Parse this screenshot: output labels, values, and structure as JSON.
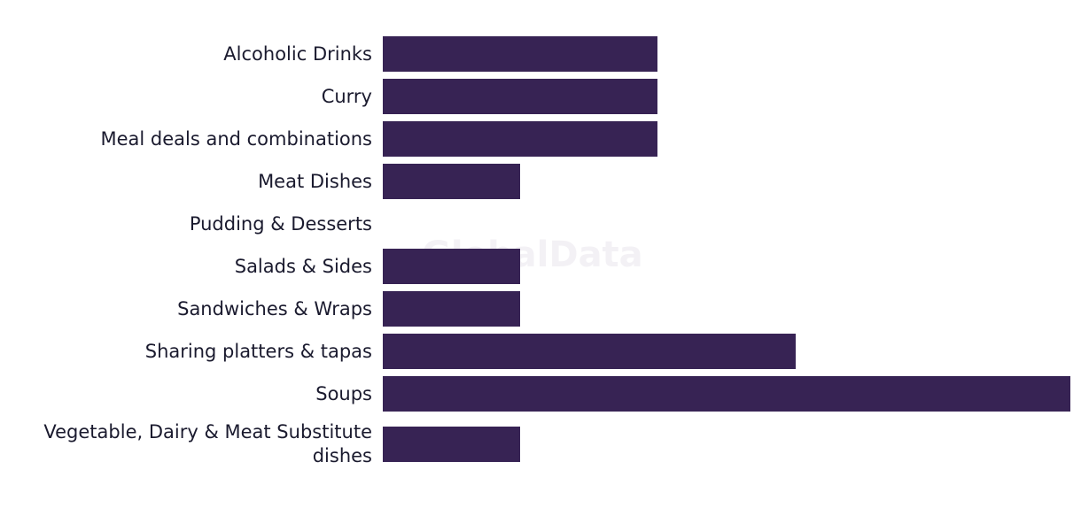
{
  "chart_data": {
    "type": "bar",
    "orientation": "horizontal",
    "categories": [
      "Alcoholic Drinks",
      "Curry",
      "Meal deals and combinations",
      "Meat Dishes",
      "Pudding & Desserts",
      "Salads & Sides",
      "Sandwiches & Wraps",
      "Sharing platters & tapas",
      "Soups",
      "Vegetable, Dairy & Meat Substitute dishes"
    ],
    "values": [
      2,
      2,
      2,
      1,
      0,
      1,
      1,
      3,
      5,
      1
    ],
    "color": "#372354",
    "xlim": [
      0,
      5
    ],
    "watermark": "GlobalData"
  }
}
